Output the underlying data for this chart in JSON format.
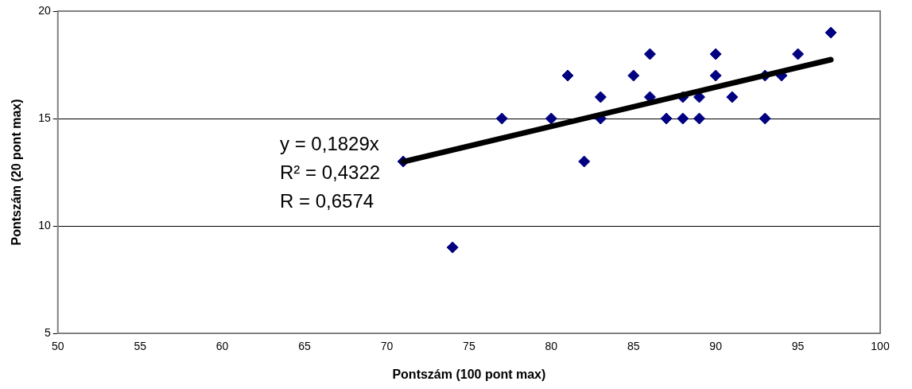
{
  "chart_data": {
    "type": "scatter",
    "xlabel": "Pontszám (100 pont max)",
    "ylabel": "Pontszám (20 pont max)",
    "xlim": [
      50,
      100
    ],
    "xticks": [
      50,
      55,
      60,
      65,
      70,
      75,
      80,
      85,
      90,
      95,
      100
    ],
    "ylim": [
      5,
      20
    ],
    "yticks": [
      5,
      10,
      15,
      20
    ],
    "grid": "y",
    "legend": false,
    "series": [
      {
        "marker": "diamond",
        "color": "#000080",
        "x": [
          71,
          74,
          77,
          80,
          81,
          82,
          83,
          83,
          85,
          86,
          86,
          87,
          88,
          88,
          89,
          89,
          90,
          90,
          91,
          93,
          93,
          94,
          95,
          97
        ],
        "values": [
          13,
          9,
          15,
          15,
          17,
          13,
          16,
          15,
          17,
          18,
          16,
          15,
          16,
          15,
          16,
          15,
          18,
          17,
          16,
          17,
          15,
          17,
          18,
          19
        ]
      },
      {
        "type": "line",
        "color": "#000000",
        "x": [
          71,
          97
        ],
        "values": [
          12.99,
          17.74
        ]
      }
    ],
    "annotations": [
      "y = 0,1829x",
      "R² = 0,4322",
      "R = 0,6574"
    ]
  }
}
